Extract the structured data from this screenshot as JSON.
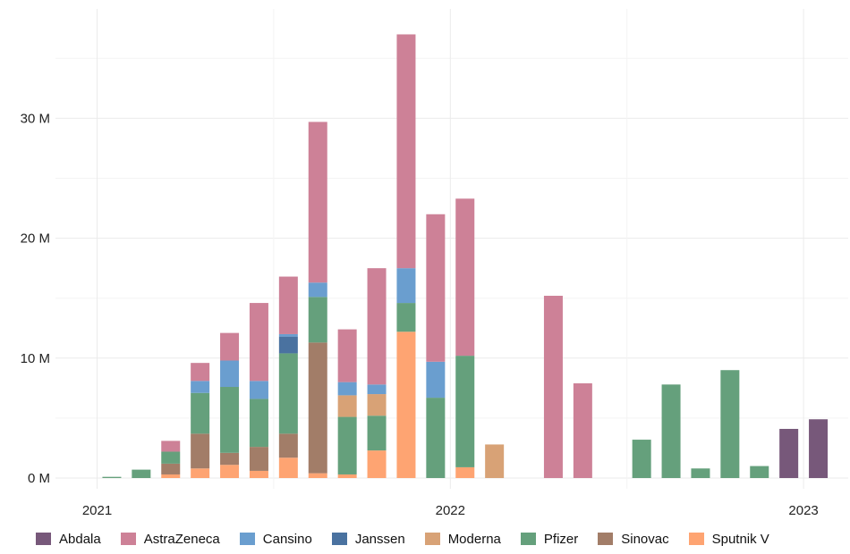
{
  "chart_data": {
    "type": "bar",
    "stacked": true,
    "x_axis_type": "time",
    "x_ticks": [
      "2021",
      "2022",
      "2023"
    ],
    "y_ticks": [
      "0 M",
      "10 M",
      "20 M",
      "30 M"
    ],
    "ylim": [
      0,
      37500000
    ],
    "grid": true,
    "legend_position": "bottom",
    "categories": [
      "2021-01",
      "2021-02",
      "2021-03",
      "2021-04",
      "2021-05",
      "2021-06",
      "2021-07",
      "2021-08",
      "2021-09",
      "2021-10",
      "2021-11",
      "2021-12",
      "2022-01",
      "2022-02",
      "2022-03",
      "2022-04",
      "2022-05",
      "2022-06",
      "2022-07",
      "2022-08",
      "2022-09",
      "2022-10",
      "2022-11",
      "2022-12",
      "2023-01"
    ],
    "series": [
      {
        "name": "Abdala",
        "color": "#77587a",
        "values": [
          0,
          0,
          0,
          0,
          0,
          0,
          0,
          0,
          0,
          0,
          0,
          0,
          0,
          0,
          0,
          0,
          0,
          0,
          0,
          0,
          0,
          0,
          0,
          4100000,
          4900000
        ]
      },
      {
        "name": "AstraZeneca",
        "color": "#cd8197",
        "values": [
          0,
          0,
          900000,
          1500000,
          2300000,
          6500000,
          4800000,
          13400000,
          4400000,
          9700000,
          19500000,
          12300000,
          13100000,
          0,
          0,
          15200000,
          7900000,
          0,
          0,
          0,
          0,
          0,
          0,
          0,
          0
        ]
      },
      {
        "name": "Cansino",
        "color": "#6a9ecf",
        "values": [
          0,
          0,
          0,
          1000000,
          2200000,
          1500000,
          200000,
          1200000,
          1100000,
          800000,
          2900000,
          3000000,
          0,
          0,
          0,
          0,
          0,
          0,
          0,
          0,
          0,
          0,
          0,
          0,
          0
        ]
      },
      {
        "name": "Janssen",
        "color": "#4a72a0",
        "values": [
          0,
          0,
          0,
          0,
          0,
          0,
          1400000,
          0,
          0,
          0,
          0,
          0,
          0,
          0,
          0,
          0,
          0,
          0,
          0,
          0,
          0,
          0,
          0,
          0,
          0
        ]
      },
      {
        "name": "Moderna",
        "color": "#d8a276",
        "values": [
          0,
          0,
          0,
          0,
          0,
          0,
          0,
          0,
          1800000,
          1800000,
          0,
          0,
          0,
          2800000,
          0,
          0,
          0,
          0,
          0,
          0,
          0,
          0,
          0,
          0,
          0
        ]
      },
      {
        "name": "Pfizer",
        "color": "#65a07c",
        "values": [
          100000,
          700000,
          1000000,
          3400000,
          5500000,
          4000000,
          6700000,
          3800000,
          4800000,
          2900000,
          2400000,
          6700000,
          9300000,
          0,
          0,
          0,
          0,
          0,
          3200000,
          7800000,
          800000,
          9000000,
          1000000,
          0,
          0
        ]
      },
      {
        "name": "Sinovac",
        "color": "#a27d68",
        "values": [
          0,
          0,
          900000,
          2900000,
          1000000,
          2000000,
          2000000,
          10900000,
          0,
          0,
          0,
          0,
          0,
          0,
          0,
          0,
          0,
          0,
          0,
          0,
          0,
          0,
          0,
          0,
          0
        ]
      },
      {
        "name": "Sputnik V",
        "color": "#fea472",
        "values": [
          0,
          0,
          300000,
          800000,
          1100000,
          600000,
          1700000,
          400000,
          300000,
          2300000,
          12200000,
          0,
          900000,
          0,
          0,
          0,
          0,
          0,
          0,
          0,
          0,
          0,
          0,
          0,
          0
        ]
      }
    ]
  }
}
